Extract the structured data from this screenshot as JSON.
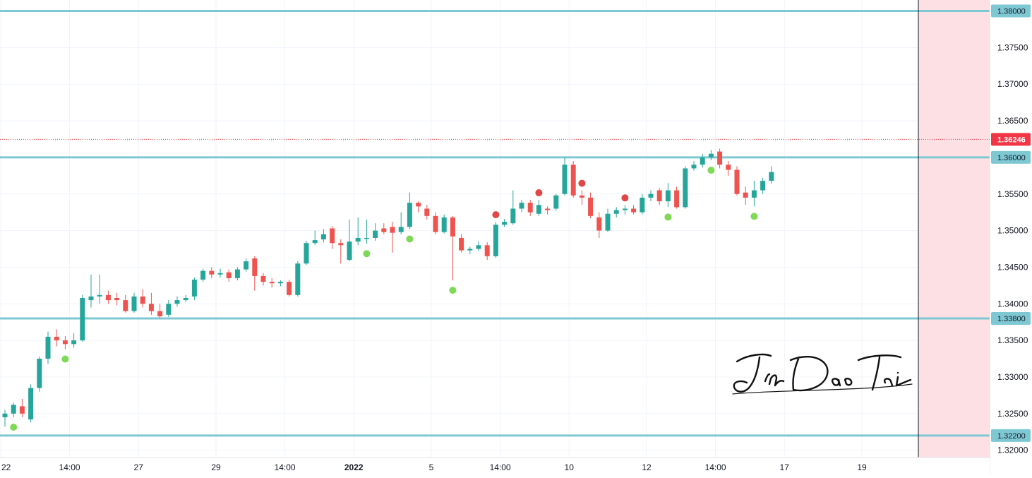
{
  "chart_data": {
    "type": "candlestick",
    "title": "",
    "watermark": "JinDaoTai",
    "y_range": [
      1.319,
      1.3815
    ],
    "y_ticks": [
      "1.32000",
      "1.32500",
      "1.33000",
      "1.33500",
      "1.34000",
      "1.34500",
      "1.35000",
      "1.35500",
      "1.36000",
      "1.36500",
      "1.37000",
      "1.37500",
      "1.38000"
    ],
    "x_labels": [
      {
        "label": "22",
        "bold": false,
        "index": 0
      },
      {
        "label": "14:00",
        "bold": false,
        "index": 8
      },
      {
        "label": "27",
        "bold": false,
        "index": 16
      },
      {
        "label": "29",
        "bold": false,
        "index": 25
      },
      {
        "label": "14:00",
        "bold": false,
        "index": 33
      },
      {
        "label": "2022",
        "bold": true,
        "index": 41
      },
      {
        "label": "5",
        "bold": false,
        "index": 50
      },
      {
        "label": "14:00",
        "bold": false,
        "index": 58
      },
      {
        "label": "10",
        "bold": false,
        "index": 66
      },
      {
        "label": "12",
        "bold": false,
        "index": 75
      },
      {
        "label": "14:00",
        "bold": false,
        "index": 83
      },
      {
        "label": "17",
        "bold": false,
        "index": 91
      },
      {
        "label": "19",
        "bold": false,
        "index": 100
      }
    ],
    "horizontal_levels": [
      {
        "value": 1.38,
        "label": "1.38000"
      },
      {
        "value": 1.36,
        "label": "1.36000"
      },
      {
        "value": 1.338,
        "label": "1.33800"
      },
      {
        "value": 1.322,
        "label": "1.32200"
      }
    ],
    "current_price": {
      "value": 1.36246,
      "label": "1.36246"
    },
    "colors": {
      "up": "#26a69a",
      "down": "#ef5350",
      "level_line": "#7ec8d4",
      "current_price": "#f23645",
      "shade": "#fde0e4",
      "signal_green": "#7ed957",
      "signal_red": "#e04848"
    },
    "candles": [
      [
        1.3245,
        1.325,
        1.3232,
        1.3255
      ],
      [
        1.325,
        1.3262,
        1.3245,
        1.3265
      ],
      [
        1.326,
        1.325,
        1.3245,
        1.327
      ],
      [
        1.3242,
        1.3285,
        1.3238,
        1.329
      ],
      [
        1.3285,
        1.3325,
        1.328,
        1.3328
      ],
      [
        1.3325,
        1.3355,
        1.3318,
        1.3362
      ],
      [
        1.3355,
        1.335,
        1.3342,
        1.3365
      ],
      [
        1.335,
        1.3345,
        1.3338,
        1.3356
      ],
      [
        1.3345,
        1.335,
        1.334,
        1.336
      ],
      [
        1.335,
        1.3408,
        1.3348,
        1.3412
      ],
      [
        1.3405,
        1.341,
        1.3395,
        1.344
      ],
      [
        1.341,
        1.3412,
        1.34,
        1.344
      ],
      [
        1.3412,
        1.3405,
        1.34,
        1.3418
      ],
      [
        1.3408,
        1.3405,
        1.3398,
        1.3415
      ],
      [
        1.3405,
        1.339,
        1.3388,
        1.3412
      ],
      [
        1.339,
        1.341,
        1.3388,
        1.3415
      ],
      [
        1.341,
        1.34,
        1.3395,
        1.342
      ],
      [
        1.34,
        1.339,
        1.3385,
        1.3415
      ],
      [
        1.339,
        1.3383,
        1.338,
        1.34
      ],
      [
        1.3385,
        1.34,
        1.3382,
        1.3405
      ],
      [
        1.34,
        1.3405,
        1.3396,
        1.341
      ],
      [
        1.3405,
        1.3408,
        1.3402,
        1.3412
      ],
      [
        1.341,
        1.3433,
        1.3405,
        1.3436
      ],
      [
        1.3433,
        1.3445,
        1.343,
        1.3448
      ],
      [
        1.3445,
        1.344,
        1.3435,
        1.345
      ],
      [
        1.344,
        1.3442,
        1.3436,
        1.3448
      ],
      [
        1.3443,
        1.3435,
        1.343,
        1.3447
      ],
      [
        1.3435,
        1.3447,
        1.3432,
        1.345
      ],
      [
        1.3447,
        1.3458,
        1.3444,
        1.3462
      ],
      [
        1.3462,
        1.3438,
        1.3418,
        1.3465
      ],
      [
        1.3438,
        1.343,
        1.3425,
        1.3442
      ],
      [
        1.343,
        1.3428,
        1.3422,
        1.3435
      ],
      [
        1.3428,
        1.343,
        1.3424,
        1.3432
      ],
      [
        1.343,
        1.3412,
        1.341,
        1.3433
      ],
      [
        1.3412,
        1.3455,
        1.341,
        1.3458
      ],
      [
        1.3455,
        1.3483,
        1.3453,
        1.3486
      ],
      [
        1.3483,
        1.3487,
        1.348,
        1.35
      ],
      [
        1.3488,
        1.3495,
        1.3484,
        1.3502
      ],
      [
        1.3503,
        1.3483,
        1.3475,
        1.3506
      ],
      [
        1.3483,
        1.348,
        1.3455,
        1.3488
      ],
      [
        1.346,
        1.3485,
        1.3458,
        1.3515
      ],
      [
        1.3485,
        1.349,
        1.348,
        1.3518
      ],
      [
        1.349,
        1.349,
        1.3482,
        1.3515
      ],
      [
        1.349,
        1.35,
        1.3486,
        1.351
      ],
      [
        1.3503,
        1.3498,
        1.3495,
        1.351
      ],
      [
        1.3505,
        1.3497,
        1.347,
        1.3512
      ],
      [
        1.3498,
        1.3505,
        1.3495,
        1.3525
      ],
      [
        1.3505,
        1.3538,
        1.3502,
        1.3552
      ],
      [
        1.3538,
        1.3533,
        1.3525,
        1.354
      ],
      [
        1.353,
        1.352,
        1.3515,
        1.3535
      ],
      [
        1.352,
        1.3498,
        1.3495,
        1.3525
      ],
      [
        1.3498,
        1.3518,
        1.3496,
        1.3522
      ],
      [
        1.3518,
        1.3492,
        1.3432,
        1.352
      ],
      [
        1.349,
        1.3473,
        1.347,
        1.3495
      ],
      [
        1.3473,
        1.3475,
        1.3468,
        1.3478
      ],
      [
        1.3475,
        1.348,
        1.3472,
        1.3485
      ],
      [
        1.348,
        1.3465,
        1.346,
        1.3484
      ],
      [
        1.3465,
        1.3508,
        1.3463,
        1.3512
      ],
      [
        1.3508,
        1.3512,
        1.3505,
        1.3516
      ],
      [
        1.351,
        1.353,
        1.3508,
        1.3555
      ],
      [
        1.353,
        1.3538,
        1.3525,
        1.3542
      ],
      [
        1.3538,
        1.3525,
        1.352,
        1.3542
      ],
      [
        1.3523,
        1.3535,
        1.352,
        1.3542
      ],
      [
        1.353,
        1.3528,
        1.3522,
        1.3533
      ],
      [
        1.353,
        1.3548,
        1.3527,
        1.355
      ],
      [
        1.355,
        1.359,
        1.3548,
        1.36
      ],
      [
        1.359,
        1.3548,
        1.3545,
        1.3595
      ],
      [
        1.3548,
        1.3545,
        1.3535,
        1.3555
      ],
      [
        1.3545,
        1.352,
        1.3517,
        1.3552
      ],
      [
        1.3518,
        1.35,
        1.349,
        1.3525
      ],
      [
        1.35,
        1.3523,
        1.3498,
        1.353
      ],
      [
        1.3523,
        1.3528,
        1.3518,
        1.3532
      ],
      [
        1.3528,
        1.353,
        1.3522,
        1.3535
      ],
      [
        1.353,
        1.3525,
        1.3522,
        1.3535
      ],
      [
        1.3525,
        1.3545,
        1.3522,
        1.355
      ],
      [
        1.3545,
        1.355,
        1.354,
        1.3555
      ],
      [
        1.3555,
        1.354,
        1.3535,
        1.3558
      ],
      [
        1.354,
        1.3555,
        1.3532,
        1.3565
      ],
      [
        1.3555,
        1.3532,
        1.353,
        1.356
      ],
      [
        1.3532,
        1.3585,
        1.353,
        1.3588
      ],
      [
        1.3585,
        1.359,
        1.3582,
        1.3595
      ],
      [
        1.359,
        1.36,
        1.3586,
        1.3605
      ],
      [
        1.36,
        1.3605,
        1.3596,
        1.361
      ],
      [
        1.3608,
        1.359,
        1.3585,
        1.3612
      ],
      [
        1.359,
        1.3583,
        1.3575,
        1.3595
      ],
      [
        1.3583,
        1.355,
        1.3548,
        1.3588
      ],
      [
        1.3552,
        1.3545,
        1.3535,
        1.356
      ],
      [
        1.3545,
        1.3555,
        1.3533,
        1.3568
      ],
      [
        1.3555,
        1.3568,
        1.355,
        1.3572
      ],
      [
        1.3568,
        1.358,
        1.3564,
        1.3588
      ]
    ]
  }
}
